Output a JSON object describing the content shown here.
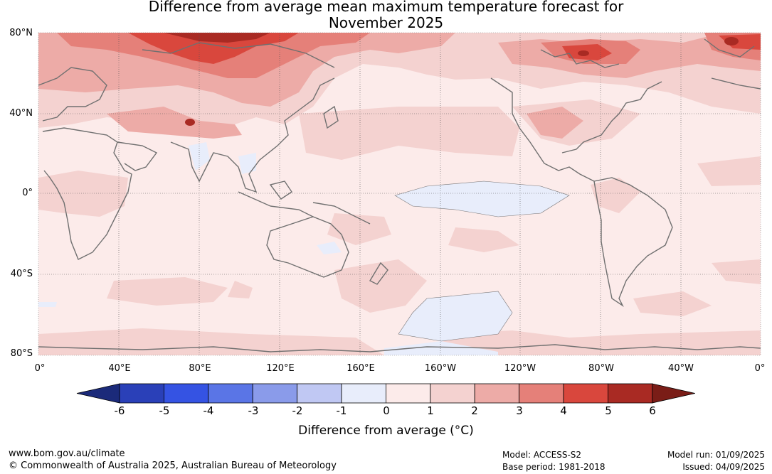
{
  "title_line1": "Difference from average mean maximum temperature forecast for",
  "title_line2": "November 2025",
  "lat_labels": [
    "80°N",
    "40°N",
    "0°",
    "40°S",
    "80°S"
  ],
  "lon_labels": [
    "0°",
    "40°E",
    "80°E",
    "120°E",
    "160°E",
    "160°W",
    "120°W",
    "80°W",
    "40°W",
    "0°"
  ],
  "colorbar": {
    "ticks": [
      "-6",
      "-5",
      "-4",
      "-3",
      "-2",
      "-1",
      "0",
      "1",
      "2",
      "3",
      "4",
      "5",
      "6"
    ],
    "colors": [
      "#1b2a7a",
      "#2a40b8",
      "#3553e3",
      "#5a75e6",
      "#8a9bea",
      "#c0c8f3",
      "#e8edfb",
      "#fcebea",
      "#f4d2d0",
      "#edaba7",
      "#e58079",
      "#d9473d",
      "#a92a23",
      "#7a1d17"
    ],
    "label": "Difference from average (°C)"
  },
  "footer": {
    "url": "www.bom.gov.au/climate",
    "copyright": "© Commonwealth of Australia 2025, Australian Bureau of Meteorology",
    "model": "Model: ACCESS-S2",
    "base_period": "Base period: 1981-2018",
    "model_run": "Model run: 01/09/2025",
    "issued": "Issued: 04/09/2025"
  }
}
